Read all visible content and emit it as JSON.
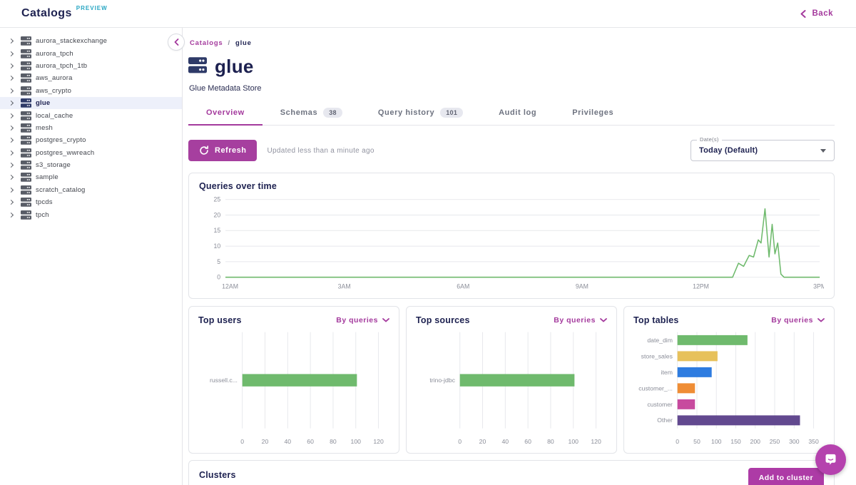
{
  "header": {
    "title": "Catalogs",
    "preview_badge": "PREVIEW",
    "back_label": "Back"
  },
  "sidebar": {
    "selected": "glue",
    "items": [
      "aurora_stackexchange",
      "aurora_tpch",
      "aurora_tpch_1tb",
      "aws_aurora",
      "aws_crypto",
      "glue",
      "local_cache",
      "mesh",
      "postgres_crypto",
      "postgres_wwreach",
      "s3_storage",
      "sample",
      "scratch_catalog",
      "tpcds",
      "tpch"
    ]
  },
  "breadcrumb": {
    "parent": "Catalogs",
    "separator": "/",
    "current": "glue"
  },
  "page": {
    "title": "glue",
    "subtitle": "Glue Metadata Store"
  },
  "tabs": [
    {
      "label": "Overview",
      "badge": null,
      "active": true
    },
    {
      "label": "Schemas",
      "badge": "38",
      "active": false
    },
    {
      "label": "Query history",
      "badge": "101",
      "active": false
    },
    {
      "label": "Audit log",
      "badge": null,
      "active": false
    },
    {
      "label": "Privileges",
      "badge": null,
      "active": false
    }
  ],
  "toolbar": {
    "refresh_label": "Refresh",
    "updated_text": "Updated less than a minute ago",
    "date_label": "Date(s)",
    "date_value": "Today (Default)"
  },
  "chart_data": [
    {
      "type": "line",
      "title": "Queries over time",
      "x_ticks": [
        "12AM",
        "3AM",
        "6AM",
        "9AM",
        "12PM",
        "3PM"
      ],
      "x_range": [
        0,
        15
      ],
      "y_ticks": [
        0,
        5,
        10,
        15,
        20,
        25
      ],
      "ylim": [
        0,
        25
      ],
      "grid": "horizontal",
      "legend": false,
      "series": [
        {
          "name": "Queries",
          "color": "#6fba6d",
          "points": [
            [
              0,
              0
            ],
            [
              12.8,
              0
            ],
            [
              12.95,
              4.5
            ],
            [
              13.08,
              3.5
            ],
            [
              13.22,
              7
            ],
            [
              13.33,
              6.5
            ],
            [
              13.45,
              12
            ],
            [
              13.52,
              11
            ],
            [
              13.62,
              22
            ],
            [
              13.72,
              6.5
            ],
            [
              13.8,
              17
            ],
            [
              13.87,
              7.5
            ],
            [
              13.94,
              11
            ],
            [
              14.02,
              1
            ],
            [
              14.1,
              0
            ],
            [
              15,
              0
            ]
          ]
        }
      ]
    },
    {
      "type": "bar",
      "orientation": "horizontal",
      "title": "Top users",
      "sort_label": "By queries",
      "categories": [
        "russell.c..."
      ],
      "values": [
        101
      ],
      "bar_colors": [
        "#6fba6d"
      ],
      "x_ticks": [
        0,
        20,
        40,
        60,
        80,
        100,
        120
      ],
      "xlim": [
        0,
        120
      ]
    },
    {
      "type": "bar",
      "orientation": "horizontal",
      "title": "Top sources",
      "sort_label": "By queries",
      "categories": [
        "trino-jdbc"
      ],
      "values": [
        101
      ],
      "bar_colors": [
        "#6fba6d"
      ],
      "x_ticks": [
        0,
        20,
        40,
        60,
        80,
        100,
        120
      ],
      "xlim": [
        0,
        120
      ]
    },
    {
      "type": "bar",
      "orientation": "horizontal",
      "title": "Top tables",
      "sort_label": "By queries",
      "categories": [
        "date_dim",
        "store_sales",
        "item",
        "customer_...",
        "customer",
        "Other"
      ],
      "values": [
        180,
        103,
        88,
        45,
        45,
        315
      ],
      "bar_colors": [
        "#6fba6d",
        "#e7c15b",
        "#2e7ce0",
        "#ef8d35",
        "#c74a9e",
        "#62498f"
      ],
      "x_ticks": [
        0,
        50,
        100,
        150,
        200,
        250,
        300,
        350
      ],
      "xlim": [
        0,
        350
      ]
    }
  ],
  "clusters": {
    "title": "Clusters",
    "add_button": "Add to cluster"
  },
  "colors": {
    "navy": "#1d2150",
    "magenta": "#a43a9d",
    "teal": "#27a6c3",
    "green": "#6fba6d",
    "axis_text": "#8b8e99",
    "grid": "#e7e8ec",
    "border": "#e2e4e8",
    "badge_bg": "#e7e8ef",
    "fab": "#b542ae",
    "selected_row_bg": "#edf0fa"
  }
}
